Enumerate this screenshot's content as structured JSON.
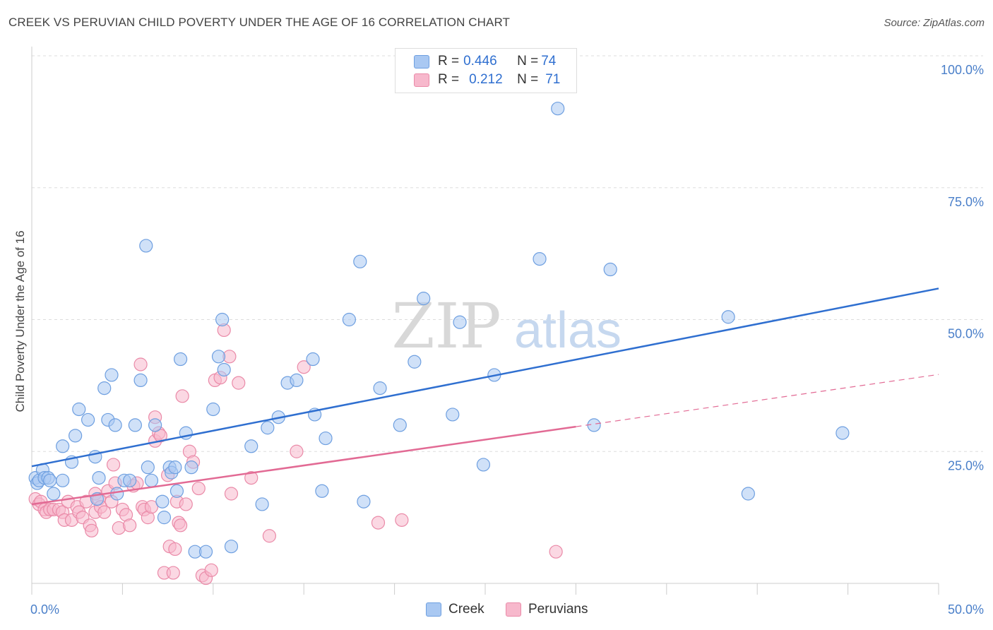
{
  "title": "CREEK VS PERUVIAN CHILD POVERTY UNDER THE AGE OF 16 CORRELATION CHART",
  "source": "Source: ZipAtlas.com",
  "watermark": {
    "zip": "ZIP",
    "atlas": "atlas"
  },
  "legend": {
    "creek": {
      "r_label": "R = ",
      "r_value": "0.446",
      "n_label": "N = ",
      "n_value": "74"
    },
    "peruvians": {
      "r_label": "R = ",
      "r_value": "0.212",
      "n_label": "N = ",
      "n_value": "71"
    }
  },
  "bottom_legend": {
    "creek": "Creek",
    "peruvians": "Peruvians"
  },
  "colors": {
    "creek_fill": "#a9c8f2",
    "creek_stroke": "#6e9fe0",
    "creek_line": "#2f6fd0",
    "peru_fill": "#f7b8cc",
    "peru_stroke": "#ea8aa8",
    "peru_line": "#e26a94",
    "tick": "#4a7fc9",
    "grid": "#dddddd"
  },
  "chart_data": {
    "type": "scatter",
    "ylabel": "Child Poverty Under the Age of 16",
    "xlim": [
      0,
      50
    ],
    "ylim": [
      0,
      100
    ],
    "x_tick_labels": [
      "0.0%",
      "50.0%"
    ],
    "y_ticks": [
      25,
      50,
      75,
      100
    ],
    "y_tick_labels": [
      "25.0%",
      "50.0%",
      "75.0%",
      "100.0%"
    ],
    "grid": true,
    "series": [
      {
        "name": "Creek",
        "r": 0.446,
        "n": 74,
        "trend": {
          "x0": 0,
          "y0": 22.2,
          "x1": 50,
          "y1": 55.9
        },
        "points": [
          [
            0.2,
            20
          ],
          [
            0.3,
            19
          ],
          [
            0.4,
            19.5
          ],
          [
            0.6,
            21.5
          ],
          [
            0.7,
            20
          ],
          [
            0.9,
            20
          ],
          [
            1.0,
            19.5
          ],
          [
            1.2,
            17
          ],
          [
            1.7,
            19.5
          ],
          [
            1.7,
            26
          ],
          [
            2.2,
            23
          ],
          [
            2.4,
            28
          ],
          [
            2.6,
            33
          ],
          [
            3.1,
            31
          ],
          [
            3.5,
            24
          ],
          [
            3.6,
            16
          ],
          [
            3.7,
            20
          ],
          [
            4.0,
            37
          ],
          [
            4.2,
            31
          ],
          [
            4.4,
            39.5
          ],
          [
            4.6,
            30
          ],
          [
            4.7,
            17
          ],
          [
            5.1,
            19.5
          ],
          [
            5.4,
            19.5
          ],
          [
            5.7,
            30
          ],
          [
            6.0,
            38.5
          ],
          [
            6.3,
            64
          ],
          [
            6.4,
            22
          ],
          [
            6.6,
            19.5
          ],
          [
            6.8,
            30
          ],
          [
            7.2,
            15.5
          ],
          [
            7.3,
            12.5
          ],
          [
            7.6,
            22
          ],
          [
            7.7,
            21
          ],
          [
            7.9,
            22
          ],
          [
            8.0,
            17.5
          ],
          [
            8.2,
            42.5
          ],
          [
            8.5,
            28.5
          ],
          [
            8.8,
            22
          ],
          [
            9.0,
            6
          ],
          [
            9.6,
            6
          ],
          [
            10.0,
            33
          ],
          [
            10.3,
            43
          ],
          [
            10.5,
            50
          ],
          [
            10.6,
            40.5
          ],
          [
            11.0,
            7
          ],
          [
            12.1,
            26
          ],
          [
            12.7,
            15
          ],
          [
            13.0,
            29.5
          ],
          [
            13.6,
            31.5
          ],
          [
            14.1,
            38
          ],
          [
            14.6,
            38.5
          ],
          [
            15.5,
            42.5
          ],
          [
            15.6,
            32
          ],
          [
            16.0,
            17.5
          ],
          [
            16.2,
            27.5
          ],
          [
            17.5,
            50
          ],
          [
            18.1,
            61
          ],
          [
            18.3,
            15.5
          ],
          [
            19.2,
            37
          ],
          [
            20.3,
            30
          ],
          [
            21.1,
            42
          ],
          [
            21.6,
            54
          ],
          [
            23.2,
            32
          ],
          [
            23.6,
            49.5
          ],
          [
            24.9,
            22.5
          ],
          [
            25.5,
            39.5
          ],
          [
            28.0,
            61.5
          ],
          [
            29.0,
            90
          ],
          [
            31.0,
            30
          ],
          [
            31.9,
            59.5
          ],
          [
            38.4,
            50.5
          ],
          [
            39.5,
            17
          ],
          [
            44.7,
            28.5
          ]
        ]
      },
      {
        "name": "Peruvians",
        "r": 0.212,
        "n": 71,
        "trend": {
          "x0": 0,
          "y0": 15,
          "x1": 30,
          "y1": 29.7
        },
        "trend_dashed": {
          "x0": 30,
          "y0": 29.7,
          "x1": 50,
          "y1": 39.6
        },
        "points": [
          [
            0.2,
            16
          ],
          [
            0.4,
            15
          ],
          [
            0.5,
            15.5
          ],
          [
            0.7,
            14
          ],
          [
            0.8,
            13.5
          ],
          [
            1.0,
            14
          ],
          [
            1.2,
            14
          ],
          [
            1.5,
            14
          ],
          [
            1.7,
            13.5
          ],
          [
            1.8,
            12
          ],
          [
            2.0,
            15.5
          ],
          [
            2.2,
            12
          ],
          [
            2.5,
            14.5
          ],
          [
            2.6,
            13.5
          ],
          [
            2.8,
            12.5
          ],
          [
            3.0,
            15.5
          ],
          [
            3.2,
            11
          ],
          [
            3.3,
            10
          ],
          [
            3.5,
            17
          ],
          [
            3.5,
            13.5
          ],
          [
            3.7,
            16
          ],
          [
            3.8,
            14.5
          ],
          [
            4.0,
            13.5
          ],
          [
            4.2,
            17.5
          ],
          [
            4.4,
            15.5
          ],
          [
            4.5,
            22.5
          ],
          [
            4.6,
            19
          ],
          [
            4.8,
            10.5
          ],
          [
            5.0,
            14
          ],
          [
            5.2,
            13
          ],
          [
            5.4,
            11
          ],
          [
            5.6,
            18.5
          ],
          [
            5.8,
            19
          ],
          [
            6.0,
            41.5
          ],
          [
            6.1,
            14.5
          ],
          [
            6.2,
            14
          ],
          [
            6.4,
            12.5
          ],
          [
            6.6,
            14.5
          ],
          [
            6.8,
            27
          ],
          [
            6.8,
            31.5
          ],
          [
            7.0,
            28.5
          ],
          [
            7.1,
            28
          ],
          [
            7.3,
            2
          ],
          [
            7.5,
            20.5
          ],
          [
            7.6,
            7
          ],
          [
            7.8,
            2
          ],
          [
            7.9,
            6.5
          ],
          [
            8.0,
            15.5
          ],
          [
            8.1,
            11.5
          ],
          [
            8.2,
            11
          ],
          [
            8.3,
            35.5
          ],
          [
            8.5,
            15
          ],
          [
            8.7,
            25
          ],
          [
            8.9,
            23
          ],
          [
            9.2,
            18
          ],
          [
            9.4,
            1.5
          ],
          [
            9.6,
            1
          ],
          [
            9.9,
            2.5
          ],
          [
            10.1,
            38.5
          ],
          [
            10.4,
            39
          ],
          [
            10.6,
            48
          ],
          [
            10.9,
            43
          ],
          [
            11.0,
            17
          ],
          [
            11.4,
            38
          ],
          [
            12.1,
            20
          ],
          [
            13.1,
            9
          ],
          [
            14.6,
            25
          ],
          [
            15.0,
            41
          ],
          [
            19.1,
            11.5
          ],
          [
            20.4,
            12
          ],
          [
            28.9,
            6
          ]
        ]
      }
    ]
  }
}
